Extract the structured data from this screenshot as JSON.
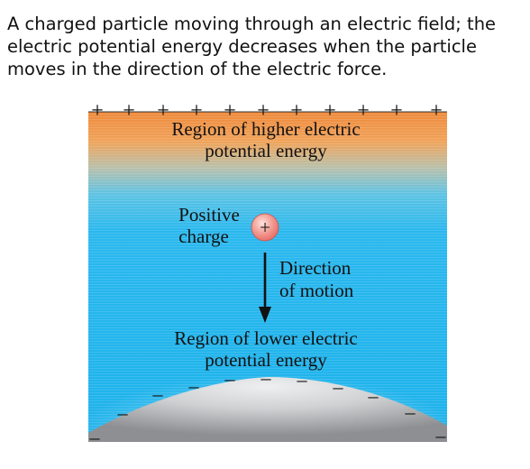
{
  "caption": {
    "lines": [
      "A charged particle moving through an electric field; the",
      "electric potential energy decreases when the particle",
      "moves in the direction of the electric force."
    ]
  },
  "diagram": {
    "top_plate_symbol": "+",
    "bottom_plate_symbol": "–",
    "higher_region": [
      "Region of higher electric",
      "potential energy"
    ],
    "positive_charge": [
      "Positive",
      "charge"
    ],
    "charge_symbol": "+",
    "direction": [
      "Direction",
      "of motion"
    ],
    "lower_region": [
      "Region of lower electric",
      "potential energy"
    ],
    "colors": {
      "top_warm": "#ee8a3c",
      "field_blue": "#22b7ee",
      "sphere_gray": "#a9aaac",
      "charge_red": "#f2857e"
    }
  }
}
